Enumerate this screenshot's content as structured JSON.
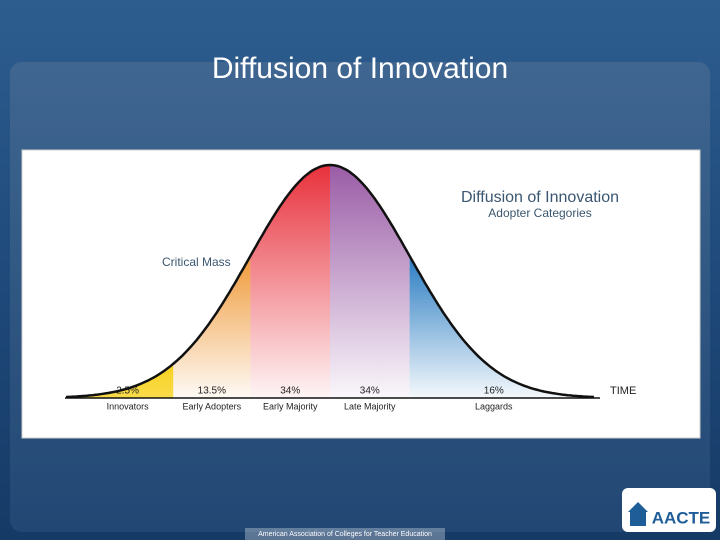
{
  "slide": {
    "title": "Diffusion of Innovation",
    "footer": "American Association of Colleges for Teacher Education",
    "logo": "AACTE"
  },
  "chart_data": {
    "type": "bell",
    "title": "Diffusion of Innovation",
    "subtitle": "Adopter Categories",
    "annotation": "Critical Mass",
    "x_label": "TIME",
    "categories": [
      "Innovators",
      "Early Adopters",
      "Early Majority",
      "Late Majority",
      "Laggards"
    ],
    "values": [
      2.5,
      13.5,
      34,
      34,
      16
    ],
    "value_labels": [
      "2.5%",
      "13.5%",
      "34%",
      "34%",
      "16%"
    ],
    "colors": [
      "#f7d21e",
      "#ef9a3a",
      "#e8313c",
      "#9a5ca6",
      "#2a7cc2"
    ]
  }
}
